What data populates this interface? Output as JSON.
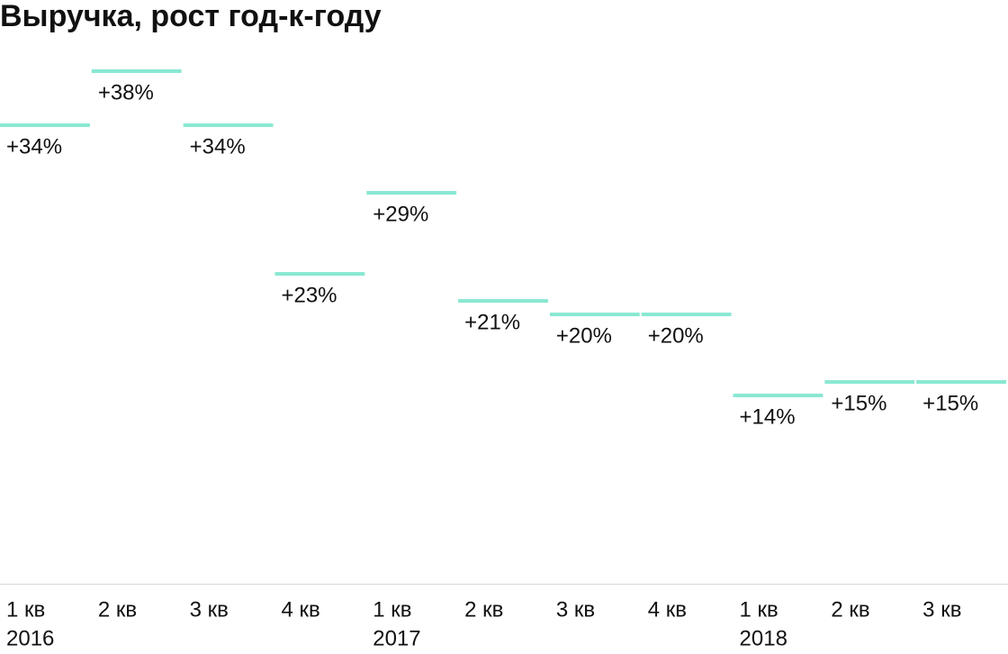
{
  "chart_data": {
    "type": "bar",
    "title": "Выручка, рост год-к-году",
    "categories": [
      "1 кв",
      "2 кв",
      "3 кв",
      "4 кв",
      "1 кв",
      "2 кв",
      "3 кв",
      "4 кв",
      "1 кв",
      "2 кв",
      "3 кв"
    ],
    "category_years": [
      "2016",
      null,
      null,
      null,
      "2017",
      null,
      null,
      null,
      "2018",
      null,
      null
    ],
    "values": [
      34,
      38,
      34,
      23,
      29,
      21,
      20,
      20,
      14,
      15,
      15
    ],
    "value_labels": [
      "+34%",
      "+38%",
      "+34%",
      "+23%",
      "+29%",
      "+21%",
      "+20%",
      "+20%",
      "+14%",
      "+15%",
      "+15%"
    ],
    "color": "#8ae8d2",
    "ylim": [
      0,
      40
    ]
  }
}
